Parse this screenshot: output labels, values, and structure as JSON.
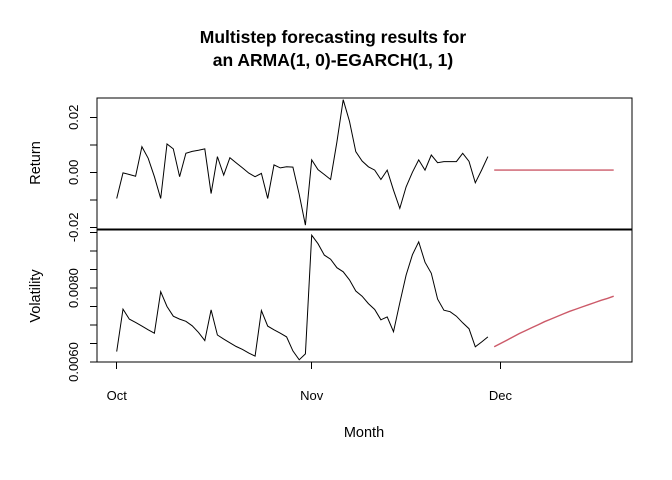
{
  "chart_data": {
    "type": "line",
    "title": {
      "line1": "Multistep forecasting results for",
      "line2": "an ARMA(1, 0)-EGARCH(1, 1)"
    },
    "xlabel": "Month",
    "x_ticks": [
      {
        "label": "Oct",
        "day": 1
      },
      {
        "label": "Nov",
        "day": 32
      },
      {
        "label": "Dec",
        "day": 62
      }
    ],
    "legend": "none",
    "grid": "off",
    "colors": {
      "observed": "#000000",
      "forecast": "#CC5A69"
    },
    "panels": [
      {
        "name": "return",
        "ylabel": "Return",
        "ylim": [
          -0.0206,
          0.027
        ],
        "yticks": [
          {
            "value": -0.02,
            "label": "-0.02"
          },
          {
            "value": -0.01,
            "label": ""
          },
          {
            "value": 0.0,
            "label": "0.00"
          },
          {
            "value": 0.01,
            "label": ""
          },
          {
            "value": 0.02,
            "label": "0.02"
          }
        ],
        "series": [
          {
            "name": "observed",
            "color": "#000000",
            "start_day": 1,
            "values": [
              -0.0095,
              -0.0002,
              -0.0008,
              -0.0014,
              0.0093,
              0.0051,
              -0.0016,
              -0.0095,
              0.0103,
              0.0085,
              -0.0016,
              0.0069,
              0.0076,
              0.008,
              0.0085,
              -0.0077,
              0.0057,
              -0.001,
              0.0053,
              0.0034,
              0.0016,
              -0.0003,
              -0.0016,
              -0.0004,
              -0.0095,
              0.0027,
              0.0016,
              0.002,
              0.0019,
              -0.008,
              -0.0192,
              0.0045,
              0.001,
              -0.0008,
              -0.0026,
              0.011,
              0.0264,
              0.0185,
              0.0075,
              0.0041,
              0.002,
              0.0008,
              -0.0026,
              0.0008,
              -0.0065,
              -0.0131,
              -0.0053,
              0.0,
              0.0045,
              0.0008,
              0.0063,
              0.0035,
              0.0039,
              0.0039,
              0.0039,
              0.0069,
              0.004,
              -0.0038,
              0.0008,
              0.0057
            ]
          },
          {
            "name": "forecast",
            "color": "#CC5A69",
            "start_day": 61,
            "values": [
              0.0008,
              0.0008,
              0.0008,
              0.0008,
              0.0008,
              0.0008,
              0.0008,
              0.0008,
              0.0008,
              0.0008,
              0.0008,
              0.0008,
              0.0008,
              0.0008,
              0.0008,
              0.0008,
              0.0008,
              0.0008,
              0.0008,
              0.0008
            ]
          }
        ]
      },
      {
        "name": "volatility",
        "ylabel": "Volatility",
        "ylim": [
          0.006,
          0.00957
        ],
        "yticks": [
          {
            "value": 0.006,
            "label": "0.0060"
          },
          {
            "value": 0.0065,
            "label": ""
          },
          {
            "value": 0.007,
            "label": ""
          },
          {
            "value": 0.0075,
            "label": ""
          },
          {
            "value": 0.008,
            "label": "0.0080"
          },
          {
            "value": 0.0085,
            "label": ""
          },
          {
            "value": 0.009,
            "label": ""
          },
          {
            "value": 0.0095,
            "label": ""
          }
        ],
        "series": [
          {
            "name": "observed",
            "color": "#000000",
            "start_day": 1,
            "values": [
              0.00628,
              0.00743,
              0.00716,
              0.00707,
              0.00697,
              0.00687,
              0.00678,
              0.0079,
              0.0075,
              0.00724,
              0.00716,
              0.0071,
              0.00698,
              0.0068,
              0.00658,
              0.00741,
              0.00673,
              0.00662,
              0.00652,
              0.00642,
              0.00634,
              0.00624,
              0.00616,
              0.00739,
              0.00697,
              0.00687,
              0.00678,
              0.00668,
              0.0063,
              0.00606,
              0.00622,
              0.00943,
              0.0092,
              0.00889,
              0.00878,
              0.00855,
              0.00844,
              0.00822,
              0.00792,
              0.00778,
              0.00758,
              0.00742,
              0.00714,
              0.00722,
              0.00682,
              0.0076,
              0.00835,
              0.0089,
              0.00925,
              0.0087,
              0.0084,
              0.0077,
              0.0074,
              0.00736,
              0.00724,
              0.00706,
              0.0069,
              0.00641,
              0.00654,
              0.00668
            ]
          },
          {
            "name": "forecast",
            "color": "#CC5A69",
            "start_day": 61,
            "values": [
              0.00641,
              0.0065,
              0.00659,
              0.00668,
              0.00677,
              0.00685,
              0.00693,
              0.00701,
              0.00709,
              0.00716,
              0.00723,
              0.0073,
              0.00737,
              0.00743,
              0.00749,
              0.00755,
              0.00761,
              0.00767,
              0.00772,
              0.00778
            ]
          }
        ]
      }
    ]
  }
}
